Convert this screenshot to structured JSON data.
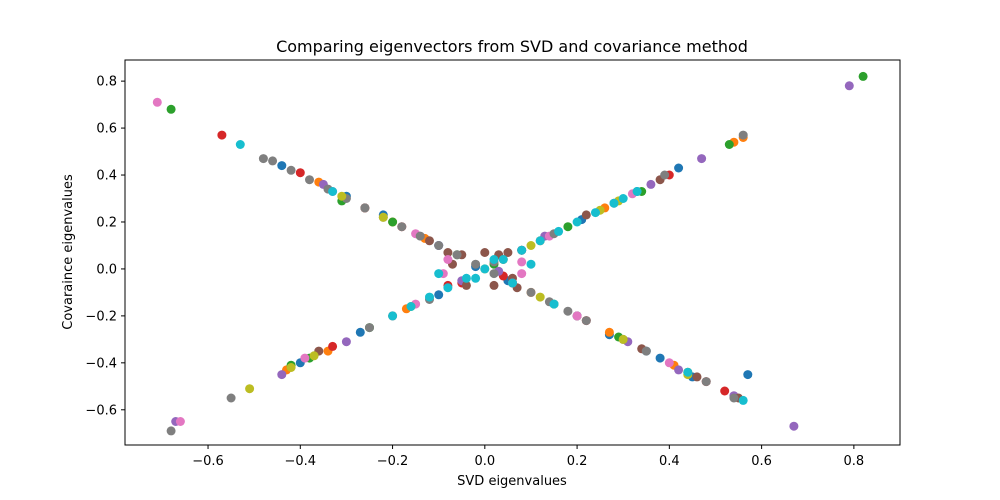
{
  "chart_data": {
    "type": "scatter",
    "title": "Comparing eigenvectors from SVD and covariance method",
    "xlabel": "SVD eigenvalues",
    "ylabel": "Covaraince eigenvalues",
    "xlim": [
      -0.78,
      0.9
    ],
    "ylim": [
      -0.75,
      0.89
    ],
    "xticks": [
      -0.6,
      -0.4,
      -0.2,
      0.0,
      0.2,
      0.4,
      0.6,
      0.8
    ],
    "xtick_labels": [
      "−0.6",
      "−0.4",
      "−0.2",
      "0.0",
      "0.2",
      "0.4",
      "0.6",
      "0.8"
    ],
    "yticks": [
      -0.6,
      -0.4,
      -0.2,
      0.0,
      0.2,
      0.4,
      0.6,
      0.8
    ],
    "ytick_labels": [
      "−0.6",
      "−0.4",
      "−0.2",
      "0.0",
      "0.2",
      "0.4",
      "0.6",
      "0.8"
    ],
    "grid": false,
    "legend": "none",
    "palette": [
      "#1f77b4",
      "#ff7f0e",
      "#2ca02c",
      "#d62728",
      "#9467bd",
      "#8c564b",
      "#e377c2",
      "#7f7f7f",
      "#bcbd22",
      "#17becf"
    ],
    "series": [
      {
        "color_index": 0,
        "points": [
          [
            -0.44,
            0.44
          ],
          [
            -0.3,
            0.31
          ],
          [
            -0.1,
            0.1
          ],
          [
            0.05,
            -0.05
          ],
          [
            0.2,
            -0.2
          ],
          [
            0.35,
            -0.35
          ],
          [
            0.45,
            -0.46
          ],
          [
            -0.4,
            -0.4
          ],
          [
            -0.27,
            -0.27
          ],
          [
            -0.1,
            -0.11
          ],
          [
            0.08,
            0.08
          ],
          [
            0.21,
            0.21
          ],
          [
            0.33,
            0.33
          ],
          [
            0.42,
            0.43
          ],
          [
            0.57,
            -0.45
          ],
          [
            -0.02,
            0.01
          ],
          [
            0.38,
            -0.38
          ],
          [
            0.27,
            -0.28
          ],
          [
            -0.22,
            0.23
          ]
        ]
      },
      {
        "color_index": 1,
        "points": [
          [
            -0.36,
            0.37
          ],
          [
            -0.2,
            0.2
          ],
          [
            0.1,
            -0.1
          ],
          [
            0.27,
            -0.27
          ],
          [
            0.41,
            -0.41
          ],
          [
            -0.34,
            -0.35
          ],
          [
            -0.17,
            -0.17
          ],
          [
            0.12,
            0.12
          ],
          [
            0.26,
            0.26
          ],
          [
            0.54,
            0.54
          ],
          [
            0.56,
            0.56
          ],
          [
            -0.43,
            -0.43
          ],
          [
            0.44,
            -0.44
          ],
          [
            -0.13,
            0.13
          ],
          [
            0.04,
            0.04
          ]
        ]
      },
      {
        "color_index": 2,
        "points": [
          [
            0.82,
            0.82
          ],
          [
            -0.68,
            0.68
          ],
          [
            -0.31,
            0.29
          ],
          [
            -0.2,
            0.2
          ],
          [
            0.15,
            -0.15
          ],
          [
            0.29,
            -0.29
          ],
          [
            -0.38,
            -0.38
          ],
          [
            -0.25,
            -0.25
          ],
          [
            0.53,
            0.53
          ],
          [
            0.02,
            0.02
          ],
          [
            0.18,
            0.18
          ],
          [
            -0.06,
            0.06
          ],
          [
            0.34,
            0.33
          ],
          [
            -0.42,
            -0.41
          ]
        ]
      },
      {
        "color_index": 3,
        "points": [
          [
            -0.57,
            0.57
          ],
          [
            -0.4,
            0.41
          ],
          [
            -0.18,
            0.18
          ],
          [
            0.06,
            -0.06
          ],
          [
            0.22,
            -0.22
          ],
          [
            0.48,
            -0.48
          ],
          [
            -0.33,
            -0.33
          ],
          [
            -0.05,
            -0.06
          ],
          [
            0.08,
            0.08
          ],
          [
            0.04,
            -0.03
          ],
          [
            -0.08,
            -0.07
          ],
          [
            0.4,
            0.4
          ],
          [
            0.52,
            -0.52
          ],
          [
            -0.26,
            0.26
          ]
        ]
      },
      {
        "color_index": 4,
        "points": [
          [
            0.79,
            0.78
          ],
          [
            0.67,
            -0.67
          ],
          [
            -0.67,
            -0.65
          ],
          [
            -0.35,
            0.36
          ],
          [
            -0.1,
            0.1
          ],
          [
            0.31,
            -0.31
          ],
          [
            0.42,
            -0.43
          ],
          [
            0.54,
            -0.54
          ],
          [
            -0.44,
            -0.45
          ],
          [
            -0.3,
            -0.31
          ],
          [
            0.13,
            0.14
          ],
          [
            0.36,
            0.36
          ],
          [
            0.47,
            0.47
          ],
          [
            0.03,
            -0.01
          ],
          [
            -0.05,
            -0.05
          ]
        ]
      },
      {
        "color_index": 5,
        "points": [
          [
            -0.26,
            0.26
          ],
          [
            -0.12,
            0.12
          ],
          [
            -0.05,
            0.06
          ],
          [
            -0.07,
            0.02
          ],
          [
            0.02,
            -0.07
          ],
          [
            0.05,
            0.07
          ],
          [
            0.03,
            0.06
          ],
          [
            -0.04,
            -0.07
          ],
          [
            0.06,
            -0.04
          ],
          [
            0.2,
            -0.2
          ],
          [
            0.34,
            -0.34
          ],
          [
            0.55,
            -0.55
          ],
          [
            -0.36,
            -0.35
          ],
          [
            -0.2,
            -0.2
          ],
          [
            0.22,
            0.23
          ],
          [
            0.38,
            0.38
          ],
          [
            -0.08,
            0.07
          ],
          [
            0.07,
            -0.08
          ],
          [
            0.46,
            -0.46
          ],
          [
            0.0,
            0.07
          ]
        ]
      },
      {
        "color_index": 6,
        "points": [
          [
            -0.71,
            0.71
          ],
          [
            -0.66,
            -0.65
          ],
          [
            -0.39,
            -0.38
          ],
          [
            -0.08,
            0.04
          ],
          [
            0.08,
            -0.02
          ],
          [
            0.08,
            0.03
          ],
          [
            -0.09,
            -0.02
          ],
          [
            0.06,
            -0.06
          ],
          [
            -0.15,
            -0.15
          ],
          [
            0.14,
            0.14
          ],
          [
            0.32,
            0.32
          ],
          [
            -0.15,
            0.15
          ],
          [
            0.2,
            -0.2
          ],
          [
            -0.33,
            0.33
          ],
          [
            0.4,
            -0.4
          ]
        ]
      },
      {
        "color_index": 7,
        "points": [
          [
            -0.48,
            0.47
          ],
          [
            -0.68,
            -0.69
          ],
          [
            -0.55,
            -0.55
          ],
          [
            0.56,
            0.57
          ],
          [
            0.39,
            0.4
          ],
          [
            -0.25,
            -0.25
          ],
          [
            -0.12,
            -0.13
          ],
          [
            0.02,
            0.03
          ],
          [
            0.15,
            0.15
          ],
          [
            0.28,
            0.28
          ],
          [
            0.54,
            -0.55
          ],
          [
            0.48,
            -0.48
          ],
          [
            0.35,
            -0.35
          ],
          [
            0.3,
            -0.3
          ],
          [
            0.22,
            -0.22
          ],
          [
            0.18,
            -0.18
          ],
          [
            0.14,
            -0.14
          ],
          [
            0.1,
            -0.1
          ],
          [
            0.06,
            -0.06
          ],
          [
            0.02,
            -0.02
          ],
          [
            -0.02,
            0.02
          ],
          [
            -0.06,
            0.06
          ],
          [
            -0.1,
            0.1
          ],
          [
            -0.14,
            0.14
          ],
          [
            -0.18,
            0.18
          ],
          [
            -0.22,
            0.22
          ],
          [
            -0.26,
            0.26
          ],
          [
            -0.3,
            0.3
          ],
          [
            -0.34,
            0.34
          ],
          [
            -0.38,
            0.38
          ],
          [
            -0.42,
            0.42
          ],
          [
            -0.46,
            0.46
          ]
        ]
      },
      {
        "color_index": 8,
        "points": [
          [
            -0.51,
            -0.51
          ],
          [
            -0.42,
            -0.42
          ],
          [
            -0.31,
            0.31
          ],
          [
            0.0,
            0.0
          ],
          [
            0.12,
            -0.12
          ],
          [
            0.3,
            -0.3
          ],
          [
            0.44,
            -0.45
          ],
          [
            -0.37,
            -0.37
          ],
          [
            -0.16,
            -0.16
          ],
          [
            0.1,
            0.1
          ],
          [
            0.29,
            0.29
          ],
          [
            -0.22,
            0.22
          ],
          [
            0.25,
            0.25
          ]
        ]
      },
      {
        "color_index": 9,
        "points": [
          [
            -0.53,
            0.53
          ],
          [
            0.56,
            -0.56
          ],
          [
            0.44,
            -0.44
          ],
          [
            -0.33,
            0.33
          ],
          [
            0.33,
            0.33
          ],
          [
            0.12,
            0.12
          ],
          [
            0.08,
            0.08
          ],
          [
            0.04,
            0.04
          ],
          [
            0.0,
            0.0
          ],
          [
            -0.04,
            -0.04
          ],
          [
            -0.08,
            -0.08
          ],
          [
            -0.12,
            -0.12
          ],
          [
            -0.16,
            -0.16
          ],
          [
            0.16,
            0.16
          ],
          [
            0.1,
            0.02
          ],
          [
            -0.1,
            -0.02
          ],
          [
            0.06,
            -0.06
          ],
          [
            0.15,
            -0.15
          ],
          [
            -0.2,
            -0.2
          ],
          [
            0.3,
            0.3
          ],
          [
            0.2,
            0.2
          ],
          [
            0.24,
            0.24
          ],
          [
            0.28,
            0.28
          ],
          [
            0.02,
            0.04
          ],
          [
            -0.02,
            -0.04
          ]
        ]
      }
    ]
  }
}
